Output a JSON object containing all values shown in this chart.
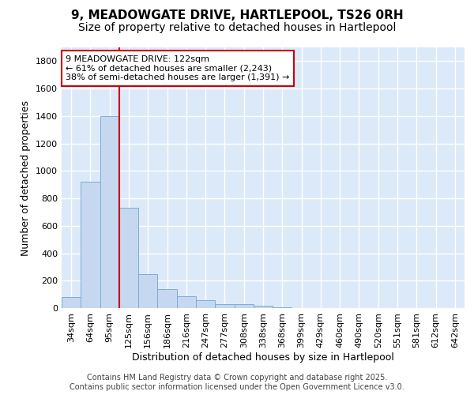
{
  "title_line1": "9, MEADOWGATE DRIVE, HARTLEPOOL, TS26 0RH",
  "title_line2": "Size of property relative to detached houses in Hartlepool",
  "xlabel": "Distribution of detached houses by size in Hartlepool",
  "ylabel": "Number of detached properties",
  "categories": [
    "34sqm",
    "64sqm",
    "95sqm",
    "125sqm",
    "156sqm",
    "186sqm",
    "216sqm",
    "247sqm",
    "277sqm",
    "308sqm",
    "338sqm",
    "368sqm",
    "399sqm",
    "429sqm",
    "460sqm",
    "490sqm",
    "520sqm",
    "551sqm",
    "581sqm",
    "612sqm",
    "642sqm"
  ],
  "values": [
    80,
    920,
    1400,
    730,
    245,
    140,
    85,
    55,
    30,
    30,
    18,
    5,
    0,
    0,
    0,
    0,
    0,
    0,
    0,
    0,
    0
  ],
  "bar_color": "#c5d8f0",
  "bar_edge_color": "#7aadd4",
  "background_color": "#dce9f8",
  "grid_color": "#ffffff",
  "vline_x_index": 3,
  "vline_color": "#cc0000",
  "annotation_text": "9 MEADOWGATE DRIVE: 122sqm\n← 61% of detached houses are smaller (2,243)\n38% of semi-detached houses are larger (1,391) →",
  "annotation_box_facecolor": "#ffffff",
  "annotation_box_edgecolor": "#cc0000",
  "ylim": [
    0,
    1900
  ],
  "yticks": [
    0,
    200,
    400,
    600,
    800,
    1000,
    1200,
    1400,
    1600,
    1800
  ],
  "title_fontsize": 11,
  "subtitle_fontsize": 10,
  "ylabel_fontsize": 9,
  "xlabel_fontsize": 9,
  "tick_fontsize": 8,
  "annotation_fontsize": 8,
  "footer_fontsize": 7,
  "footer_line1": "Contains HM Land Registry data © Crown copyright and database right 2025.",
  "footer_line2": "Contains public sector information licensed under the Open Government Licence v3.0."
}
